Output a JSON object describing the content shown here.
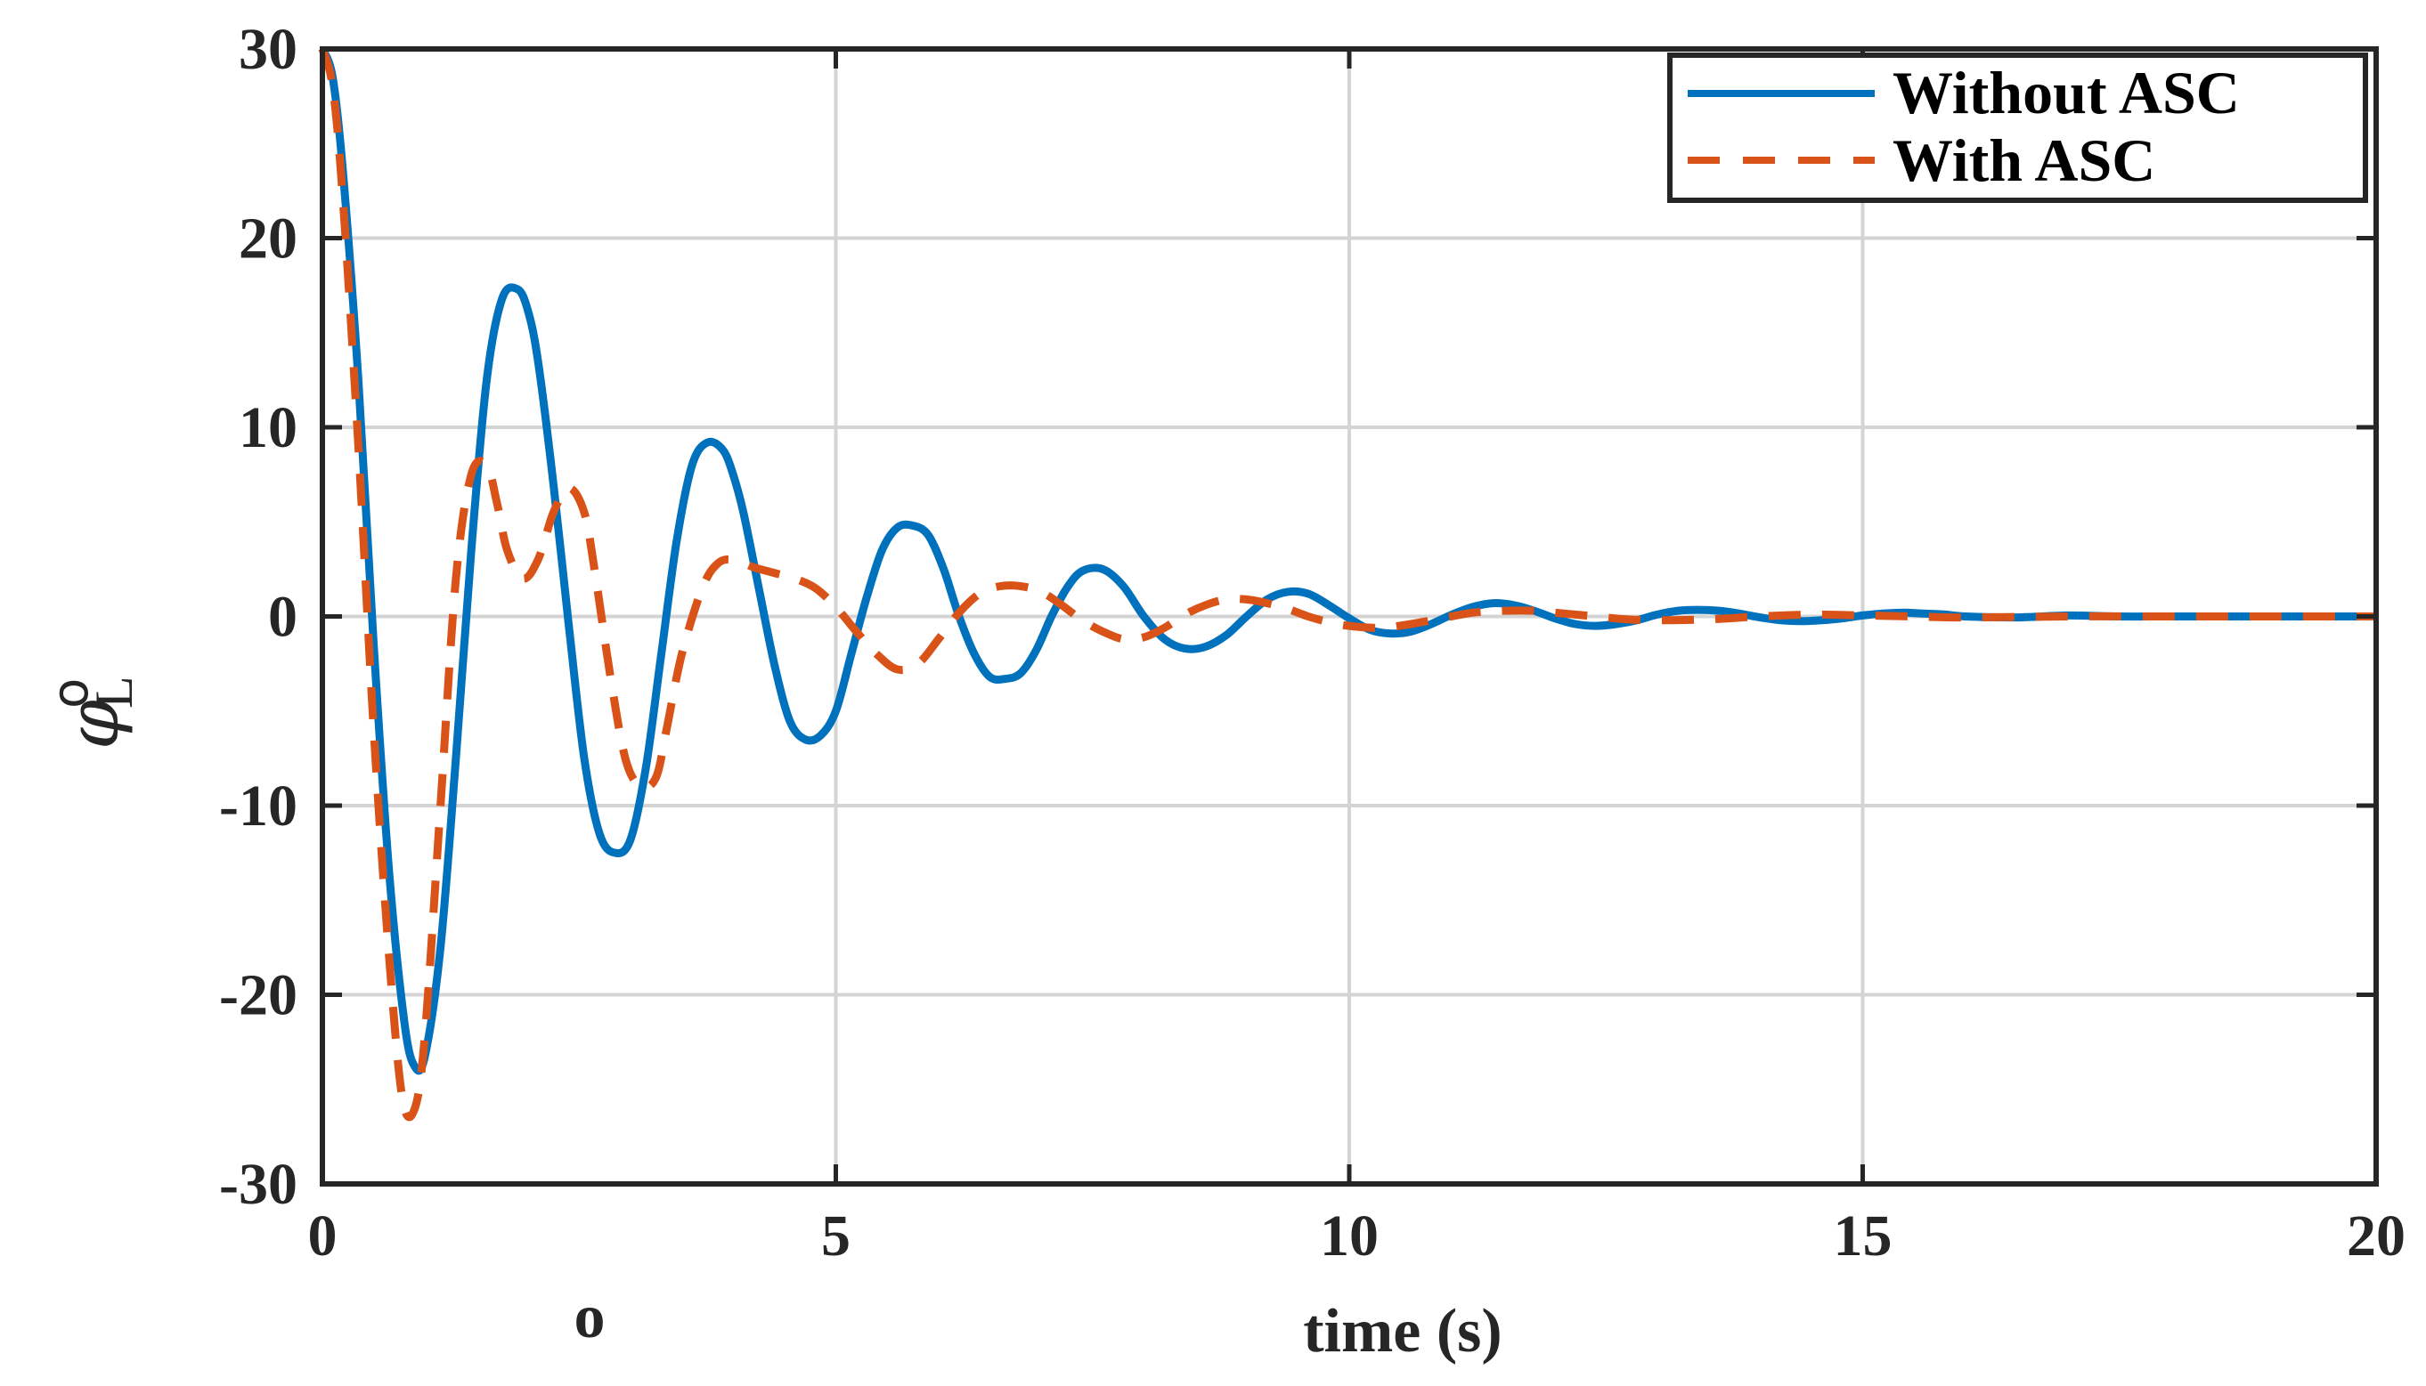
{
  "chart_data": {
    "type": "line",
    "xlabel": "time (s)",
    "ylabel": {
      "symbol": "φ",
      "subscript": "L",
      "superscript": "o"
    },
    "stray_mark": "o",
    "xlim": [
      0,
      20
    ],
    "ylim": [
      -30,
      30
    ],
    "xticks": [
      0,
      5,
      10,
      15,
      20
    ],
    "yticks": [
      -30,
      -20,
      -10,
      0,
      10,
      20,
      30
    ],
    "xtick_labels": [
      "0",
      "5",
      "10",
      "15",
      "20"
    ],
    "ytick_labels": [
      "-30",
      "-20",
      "-10",
      "0",
      "10",
      "20",
      "30"
    ],
    "grid": true,
    "legend_position": "top-right",
    "series": [
      {
        "name": "Without ASC",
        "color": "#0072BD",
        "style": "solid",
        "x": [
          0,
          0.1,
          0.2,
          0.35,
          0.5,
          0.65,
          0.8,
          0.9,
          1.0,
          1.15,
          1.3,
          1.45,
          1.6,
          1.75,
          1.9,
          2.0,
          2.1,
          2.25,
          2.4,
          2.55,
          2.7,
          2.85,
          3.0,
          3.15,
          3.3,
          3.45,
          3.6,
          3.75,
          3.9,
          4.0,
          4.1,
          4.25,
          4.4,
          4.55,
          4.7,
          4.85,
          5.0,
          5.15,
          5.3,
          5.45,
          5.6,
          5.75,
          5.9,
          6.05,
          6.2,
          6.35,
          6.5,
          6.65,
          6.8,
          6.95,
          7.1,
          7.25,
          7.4,
          7.6,
          7.8,
          8.0,
          8.2,
          8.4,
          8.6,
          8.8,
          9.0,
          9.2,
          9.4,
          9.6,
          9.8,
          10.0,
          10.2,
          10.4,
          10.6,
          10.8,
          11.0,
          11.2,
          11.4,
          11.6,
          11.8,
          12.0,
          12.2,
          12.4,
          12.6,
          12.8,
          13.0,
          13.2,
          13.4,
          13.6,
          13.8,
          14.0,
          14.2,
          14.4,
          14.6,
          14.8,
          15.0,
          15.2,
          15.4,
          15.6,
          15.8,
          16.0,
          16.5,
          17.0,
          17.5,
          18.0,
          18.5,
          19.0,
          19.5,
          20.0
        ],
        "y": [
          30,
          28.5,
          23.5,
          12.5,
          -1.5,
          -13.5,
          -21.5,
          -23.8,
          -23.2,
          -17.5,
          -7.5,
          3.5,
          12.5,
          16.8,
          17.3,
          16.2,
          13.5,
          7.0,
          -0.5,
          -7.5,
          -11.5,
          -12.5,
          -11.8,
          -8.0,
          -2.0,
          4.0,
          8.0,
          9.2,
          8.8,
          7.5,
          5.5,
          1.5,
          -2.5,
          -5.5,
          -6.5,
          -6.3,
          -5.0,
          -2.0,
          1.0,
          3.5,
          4.7,
          4.8,
          4.3,
          2.5,
          0.0,
          -2.0,
          -3.2,
          -3.3,
          -3.0,
          -1.8,
          0.0,
          1.5,
          2.4,
          2.5,
          1.6,
          0.0,
          -1.2,
          -1.7,
          -1.6,
          -1.0,
          0.0,
          0.9,
          1.3,
          1.2,
          0.6,
          -0.1,
          -0.7,
          -0.9,
          -0.8,
          -0.4,
          0.1,
          0.5,
          0.7,
          0.6,
          0.3,
          -0.1,
          -0.4,
          -0.5,
          -0.4,
          -0.2,
          0.1,
          0.3,
          0.35,
          0.3,
          0.15,
          -0.05,
          -0.2,
          -0.25,
          -0.2,
          -0.1,
          0.05,
          0.15,
          0.2,
          0.15,
          0.1,
          0.0,
          -0.05,
          0.05,
          0.0,
          0.0,
          0.0,
          0.0,
          0.0,
          0.0
        ]
      },
      {
        "name": "With ASC",
        "color": "#D95319",
        "style": "dashed",
        "x": [
          0,
          0.1,
          0.2,
          0.35,
          0.5,
          0.65,
          0.78,
          0.9,
          1.0,
          1.15,
          1.3,
          1.45,
          1.6,
          1.7,
          1.8,
          1.95,
          2.1,
          2.25,
          2.4,
          2.55,
          2.65,
          2.8,
          2.95,
          3.1,
          3.25,
          3.35,
          3.5,
          3.7,
          3.85,
          4.0,
          4.2,
          4.4,
          4.6,
          4.8,
          5.0,
          5.2,
          5.4,
          5.6,
          5.8,
          6.0,
          6.2,
          6.4,
          6.6,
          6.8,
          7.0,
          7.2,
          7.4,
          7.6,
          7.8,
          8.0,
          8.2,
          8.4,
          8.6,
          8.8,
          9.0,
          9.2,
          9.4,
          9.6,
          9.8,
          10.0,
          10.3,
          10.6,
          10.9,
          11.2,
          11.5,
          11.8,
          12.1,
          12.4,
          12.7,
          13.0,
          13.5,
          14.0,
          14.5,
          15.0,
          15.5,
          16.0,
          17.0,
          18.0,
          19.0,
          20.0
        ],
        "y": [
          30,
          28.0,
          22.0,
          9.0,
          -6.0,
          -18.0,
          -25.5,
          -26.0,
          -22.0,
          -10.0,
          2.0,
          7.5,
          8.0,
          6.0,
          3.5,
          2.0,
          3.0,
          5.5,
          6.8,
          5.5,
          2.5,
          -3.0,
          -7.5,
          -9.0,
          -8.5,
          -6.0,
          -2.0,
          1.5,
          2.8,
          3.0,
          2.6,
          2.3,
          2.0,
          1.5,
          0.5,
          -0.8,
          -2.0,
          -2.8,
          -2.5,
          -1.2,
          0.2,
          1.2,
          1.6,
          1.6,
          1.3,
          0.6,
          -0.2,
          -0.8,
          -1.2,
          -1.1,
          -0.6,
          0.1,
          0.6,
          0.9,
          0.9,
          0.7,
          0.4,
          0.0,
          -0.3,
          -0.5,
          -0.6,
          -0.4,
          -0.1,
          0.2,
          0.3,
          0.3,
          0.15,
          0.0,
          -0.15,
          -0.2,
          -0.15,
          0.0,
          0.1,
          0.05,
          0.0,
          -0.05,
          0.0,
          0.0,
          0.0,
          0.0
        ]
      }
    ]
  }
}
